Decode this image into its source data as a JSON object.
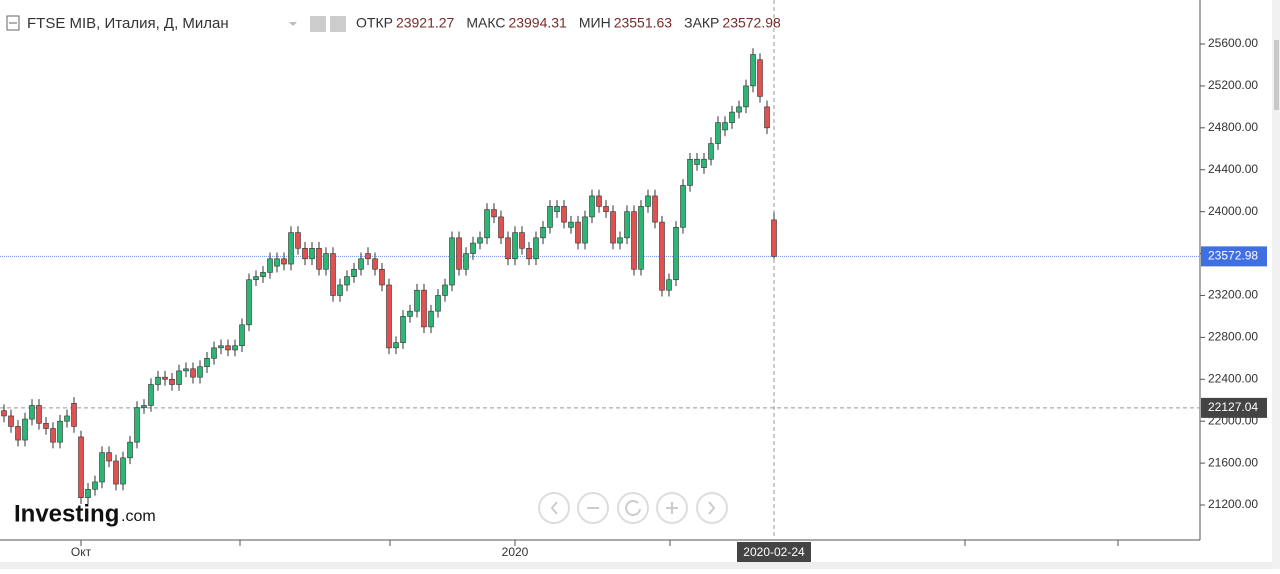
{
  "chart_data": {
    "type": "candlestick",
    "title": "FTSE MIB, Италия, Д, Милан",
    "stat_labels": [
      "ОТКР",
      "МАКС",
      "МИН",
      "ЗАКР"
    ],
    "watermark": [
      "Investing",
      ".com"
    ],
    "categories": [
      null,
      null,
      null,
      null,
      null,
      null,
      null,
      null,
      null,
      null,
      null,
      "Окт",
      null,
      null,
      null,
      null,
      null,
      null,
      null,
      null,
      null,
      null,
      null,
      null,
      null,
      null,
      null,
      null,
      null,
      null,
      null,
      null,
      null,
      null,
      null,
      null,
      null,
      null,
      null,
      null,
      null,
      null,
      null,
      null,
      null,
      null,
      null,
      null,
      null,
      null,
      null,
      null,
      null,
      null,
      null,
      null,
      null,
      null,
      null,
      null,
      null,
      null,
      null,
      null,
      null,
      null,
      null,
      null,
      null,
      null,
      null,
      null,
      null,
      "2020",
      null,
      null,
      null,
      null,
      null,
      null,
      null,
      null,
      null,
      null,
      null,
      null,
      null,
      null,
      null,
      null,
      null,
      null,
      null,
      null,
      null,
      null,
      null,
      null,
      null,
      null,
      null,
      null,
      null,
      null,
      null,
      null,
      null,
      null,
      null,
      null,
      "2020-02-24"
    ],
    "series": [
      {
        "name": "FTSE MIB",
        "up_color": "#2bb673",
        "down_color": "#e0514f",
        "open": [
          22100,
          22050,
          21950,
          21820,
          22020,
          22150,
          21980,
          21930,
          21800,
          22000,
          22170,
          21850,
          21270,
          21350,
          21420,
          21700,
          21620,
          21400,
          21650,
          21800,
          22130,
          22150,
          22350,
          22420,
          22400,
          22350,
          22480,
          22500,
          22420,
          22520,
          22600,
          22700,
          22720,
          22680,
          22720,
          22920,
          23350,
          23380,
          23420,
          23480,
          23550,
          23500,
          23800,
          23650,
          23550,
          23650,
          23450,
          23600,
          23200,
          23300,
          23380,
          23450,
          23600,
          23550,
          23450,
          23300,
          22700,
          22750,
          23000,
          23050,
          23250,
          22900,
          23050,
          23200,
          23300,
          23750,
          23450,
          23600,
          23700,
          23750,
          24020,
          23950,
          23750,
          23550,
          23800,
          23650,
          23550,
          23750,
          23850,
          24000,
          24050,
          23850,
          23900,
          23700,
          23950,
          24150,
          24050,
          24000,
          23700,
          23750,
          24000,
          23450,
          24050,
          24150,
          23900,
          23250,
          23350,
          23850,
          24250,
          24450,
          24420,
          24500,
          24650,
          24780,
          24850,
          24950,
          25000,
          25200,
          25450,
          25000,
          23921.27
        ],
        "high": [
          22160,
          22110,
          22010,
          22080,
          22210,
          22210,
          22040,
          21990,
          22060,
          22110,
          22230,
          21910,
          21410,
          21480,
          21760,
          21760,
          21680,
          21710,
          21860,
          22190,
          22210,
          22410,
          22480,
          22480,
          22460,
          22540,
          22560,
          22560,
          22580,
          22660,
          22760,
          22780,
          22780,
          22780,
          22980,
          23410,
          23440,
          23480,
          23610,
          23610,
          23610,
          23860,
          23860,
          23710,
          23710,
          23710,
          23660,
          23660,
          23360,
          23440,
          23510,
          23610,
          23660,
          23610,
          23510,
          23360,
          22810,
          23060,
          23110,
          23310,
          23310,
          23110,
          23260,
          23360,
          23810,
          23810,
          23660,
          23760,
          23810,
          24080,
          24080,
          24010,
          23810,
          23860,
          23860,
          23710,
          23810,
          23910,
          24110,
          24110,
          24110,
          23960,
          23960,
          24010,
          24210,
          24210,
          24110,
          24060,
          23810,
          24060,
          24060,
          24110,
          24210,
          24210,
          23960,
          23410,
          23910,
          24310,
          24560,
          24560,
          24560,
          24710,
          24910,
          24910,
          25010,
          25060,
          25260,
          25560,
          25510,
          25060,
          23994.31
        ],
        "low": [
          21990,
          21890,
          21760,
          21760,
          21960,
          21920,
          21870,
          21740,
          21740,
          21940,
          21890,
          21210,
          21210,
          21290,
          21360,
          21560,
          21340,
          21340,
          21590,
          21740,
          22070,
          22090,
          22290,
          22340,
          22290,
          22290,
          22420,
          22360,
          22360,
          22460,
          22540,
          22640,
          22620,
          22620,
          22660,
          22860,
          23290,
          23320,
          23360,
          23420,
          23440,
          23440,
          23590,
          23490,
          23490,
          23390,
          23390,
          23140,
          23140,
          23240,
          23320,
          23390,
          23490,
          23390,
          23240,
          22640,
          22640,
          22690,
          22940,
          22990,
          22840,
          22840,
          22990,
          23140,
          23240,
          23390,
          23390,
          23540,
          23640,
          23690,
          23890,
          23690,
          23490,
          23490,
          23590,
          23490,
          23490,
          23690,
          23790,
          23940,
          23840,
          23790,
          23640,
          23640,
          23890,
          23990,
          23940,
          23640,
          23640,
          23690,
          23390,
          23390,
          23990,
          23840,
          23190,
          23190,
          23290,
          23790,
          24190,
          24390,
          24360,
          24440,
          24590,
          24720,
          24790,
          24890,
          24940,
          25140,
          25040,
          24740,
          23551.63
        ],
        "close": [
          22050,
          21950,
          21820,
          22020,
          22150,
          21980,
          21930,
          21800,
          22000,
          22050,
          21950,
          21270,
          21350,
          21420,
          21700,
          21620,
          21400,
          21650,
          21800,
          22130,
          22150,
          22350,
          22420,
          22400,
          22350,
          22480,
          22500,
          22420,
          22520,
          22600,
          22700,
          22720,
          22680,
          22720,
          22920,
          23350,
          23380,
          23420,
          23550,
          23550,
          23500,
          23800,
          23650,
          23550,
          23650,
          23450,
          23600,
          23200,
          23300,
          23380,
          23450,
          23550,
          23550,
          23450,
          23300,
          22700,
          22750,
          23000,
          23050,
          23250,
          22900,
          23050,
          23200,
          23300,
          23750,
          23450,
          23600,
          23700,
          23750,
          24020,
          23950,
          23750,
          23550,
          23800,
          23650,
          23550,
          23750,
          23850,
          24050,
          24050,
          23900,
          23900,
          23700,
          23950,
          24150,
          24050,
          24000,
          23700,
          23750,
          24000,
          23450,
          24050,
          24150,
          23900,
          23250,
          23350,
          23850,
          24250,
          24500,
          24500,
          24500,
          24650,
          24850,
          24850,
          24950,
          25000,
          25200,
          25500,
          25100,
          24800,
          23572.98
        ]
      }
    ],
    "crosshair_value": 22127.04,
    "ylim": [
      20866,
      26020
    ],
    "yticks": [
      {
        "value": 21200,
        "label": "21200.00"
      },
      {
        "value": 21600,
        "label": "21600.00"
      },
      {
        "value": 22000,
        "label": "22000.00"
      },
      {
        "value": 22400,
        "label": "22400.00"
      },
      {
        "value": 22800,
        "label": "22800.00"
      },
      {
        "value": 23200,
        "label": "23200.00"
      },
      {
        "value": 23600,
        "label": "23600.00"
      },
      {
        "value": 24000,
        "label": "24000.00"
      },
      {
        "value": 24400,
        "label": "24400.00"
      },
      {
        "value": 24800,
        "label": "24800.00"
      },
      {
        "value": 25200,
        "label": "25200.00"
      },
      {
        "value": 25600,
        "label": "25600.00"
      }
    ]
  }
}
